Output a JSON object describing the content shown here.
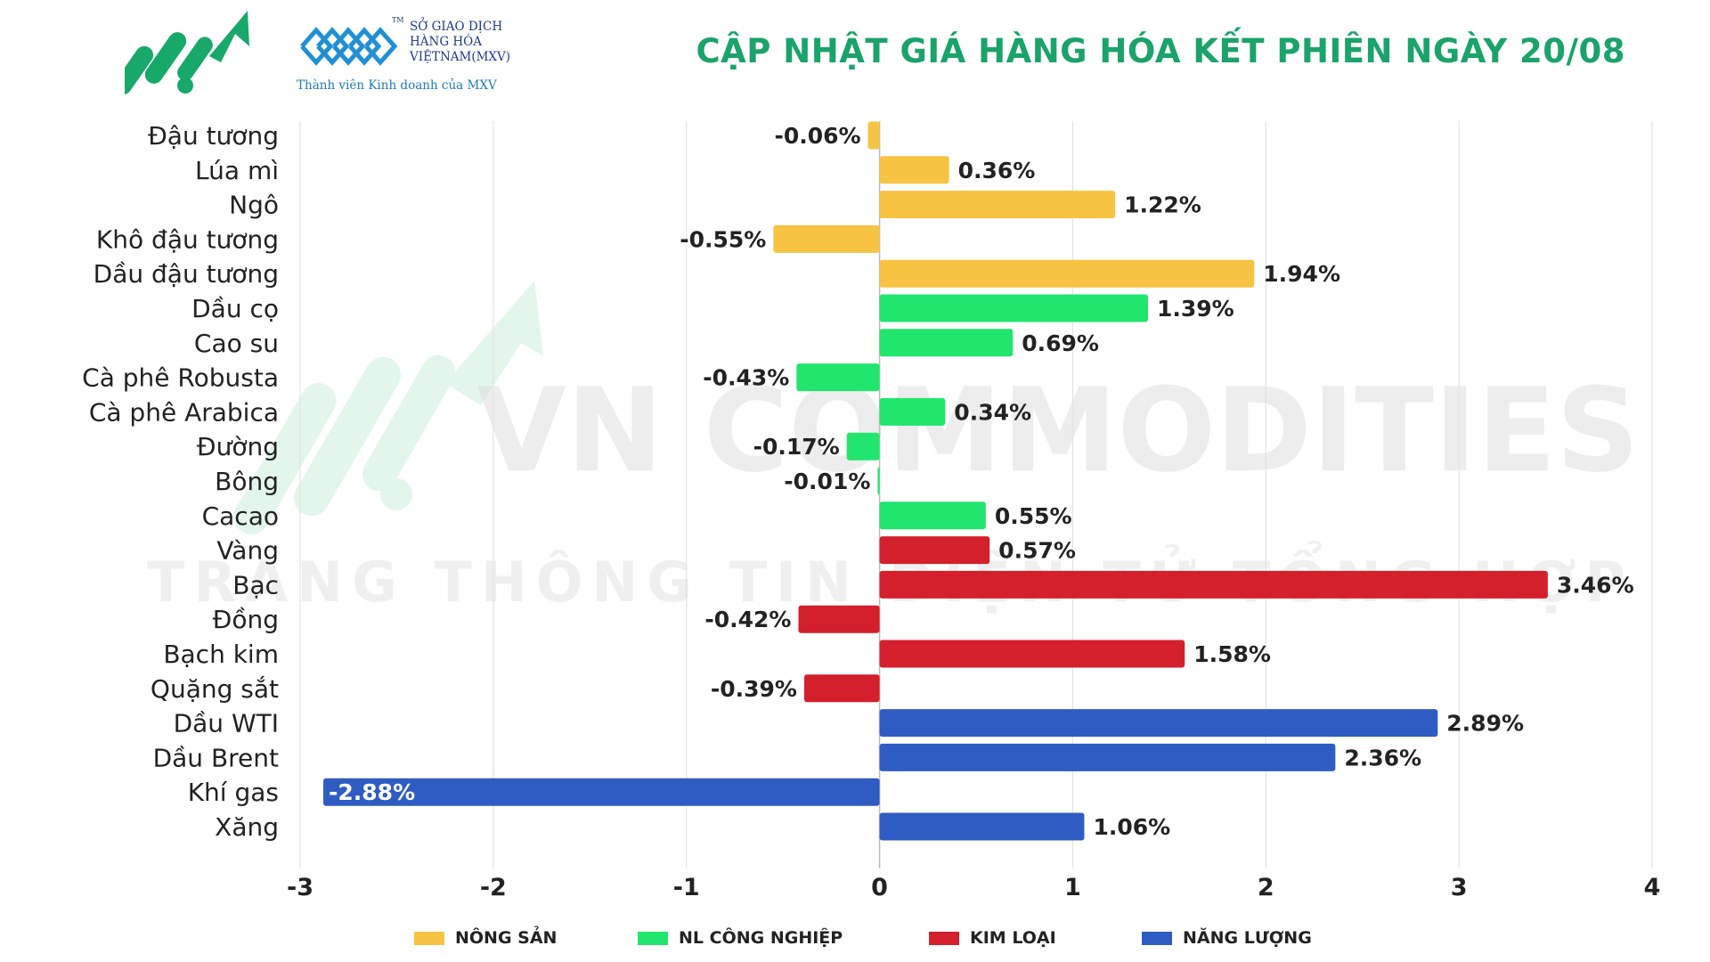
{
  "header": {
    "title": "CẬP NHẬT GIÁ HÀNG HÓA KẾT PHIÊN NGÀY 20/08",
    "mxv_line1": "SỞ GIAO DỊCH",
    "mxv_line2": "HÀNG HÓA",
    "mxv_line3": "VIỆTNAM(MXV)",
    "mxv_tm": "TM",
    "mxv_subtitle": "Thành viên Kinh doanh của MXV"
  },
  "watermark": {
    "line1": "VN COMMODITIES",
    "line2": "TRANG THÔNG TIN ĐIỆN TỬ TỔNG HỢP"
  },
  "colors": {
    "title": "#1aa36a",
    "NÔNG SẢN": "#f6c343",
    "NL CÔNG NGHIỆP": "#22e56e",
    "KIM LOẠI": "#d41f2c",
    "NĂNG LƯỢNG": "#2e5cc3"
  },
  "legend": [
    {
      "label": "NÔNG SẢN",
      "color": "#f6c343"
    },
    {
      "label": "NL CÔNG NGHIỆP",
      "color": "#22e56e"
    },
    {
      "label": "KIM LOẠI",
      "color": "#d41f2c"
    },
    {
      "label": "NĂNG LƯỢNG",
      "color": "#2e5cc3"
    }
  ],
  "chart_data": {
    "type": "bar",
    "orientation": "horizontal",
    "title": "CẬP NHẬT GIÁ HÀNG HÓA KẾT PHIÊN NGÀY 20/08",
    "xlim": [
      -3,
      4
    ],
    "xticks": [
      "-3",
      "-2",
      "-1",
      "0",
      "1",
      "2",
      "3",
      "4"
    ],
    "grid": true,
    "legend_position": "bottom",
    "categories": [
      "Đậu tương",
      "Lúa mì",
      "Ngô",
      "Khô đậu tương",
      "Dầu đậu tương",
      "Dầu cọ",
      "Cao su",
      "Cà phê Robusta",
      "Cà phê Arabica",
      "Đường",
      "Bông",
      "Cacao",
      "Vàng",
      "Bạc",
      "Đồng",
      "Bạch kim",
      "Quặng sắt",
      "Dầu WTI",
      "Dầu Brent",
      "Khí gas",
      "Xăng"
    ],
    "values": [
      -0.06,
      0.36,
      1.22,
      -0.55,
      1.94,
      1.39,
      0.69,
      -0.43,
      0.34,
      -0.17,
      -0.01,
      0.55,
      0.57,
      3.46,
      -0.42,
      1.58,
      -0.39,
      2.89,
      2.36,
      -2.88,
      1.06
    ],
    "labels": [
      "-0.06%",
      "0.36%",
      "1.22%",
      "-0.55%",
      "1.94%",
      "1.39%",
      "0.69%",
      "-0.43%",
      "0.34%",
      "-0.17%",
      "-0.01%",
      "0.55%",
      "0.57%",
      "3.46%",
      "-0.42%",
      "1.58%",
      "-0.39%",
      "2.89%",
      "2.36%",
      "-2.88%",
      "1.06%"
    ],
    "groups": [
      "NÔNG SẢN",
      "NÔNG SẢN",
      "NÔNG SẢN",
      "NÔNG SẢN",
      "NÔNG SẢN",
      "NL CÔNG NGHIỆP",
      "NL CÔNG NGHIỆP",
      "NL CÔNG NGHIỆP",
      "NL CÔNG NGHIỆP",
      "NL CÔNG NGHIỆP",
      "NL CÔNG NGHIỆP",
      "NL CÔNG NGHIỆP",
      "KIM LOẠI",
      "KIM LOẠI",
      "KIM LOẠI",
      "KIM LOẠI",
      "KIM LOẠI",
      "NĂNG LƯỢNG",
      "NĂNG LƯỢNG",
      "NĂNG LƯỢNG",
      "NĂNG LƯỢNG"
    ],
    "xlabel": "",
    "ylabel": ""
  }
}
